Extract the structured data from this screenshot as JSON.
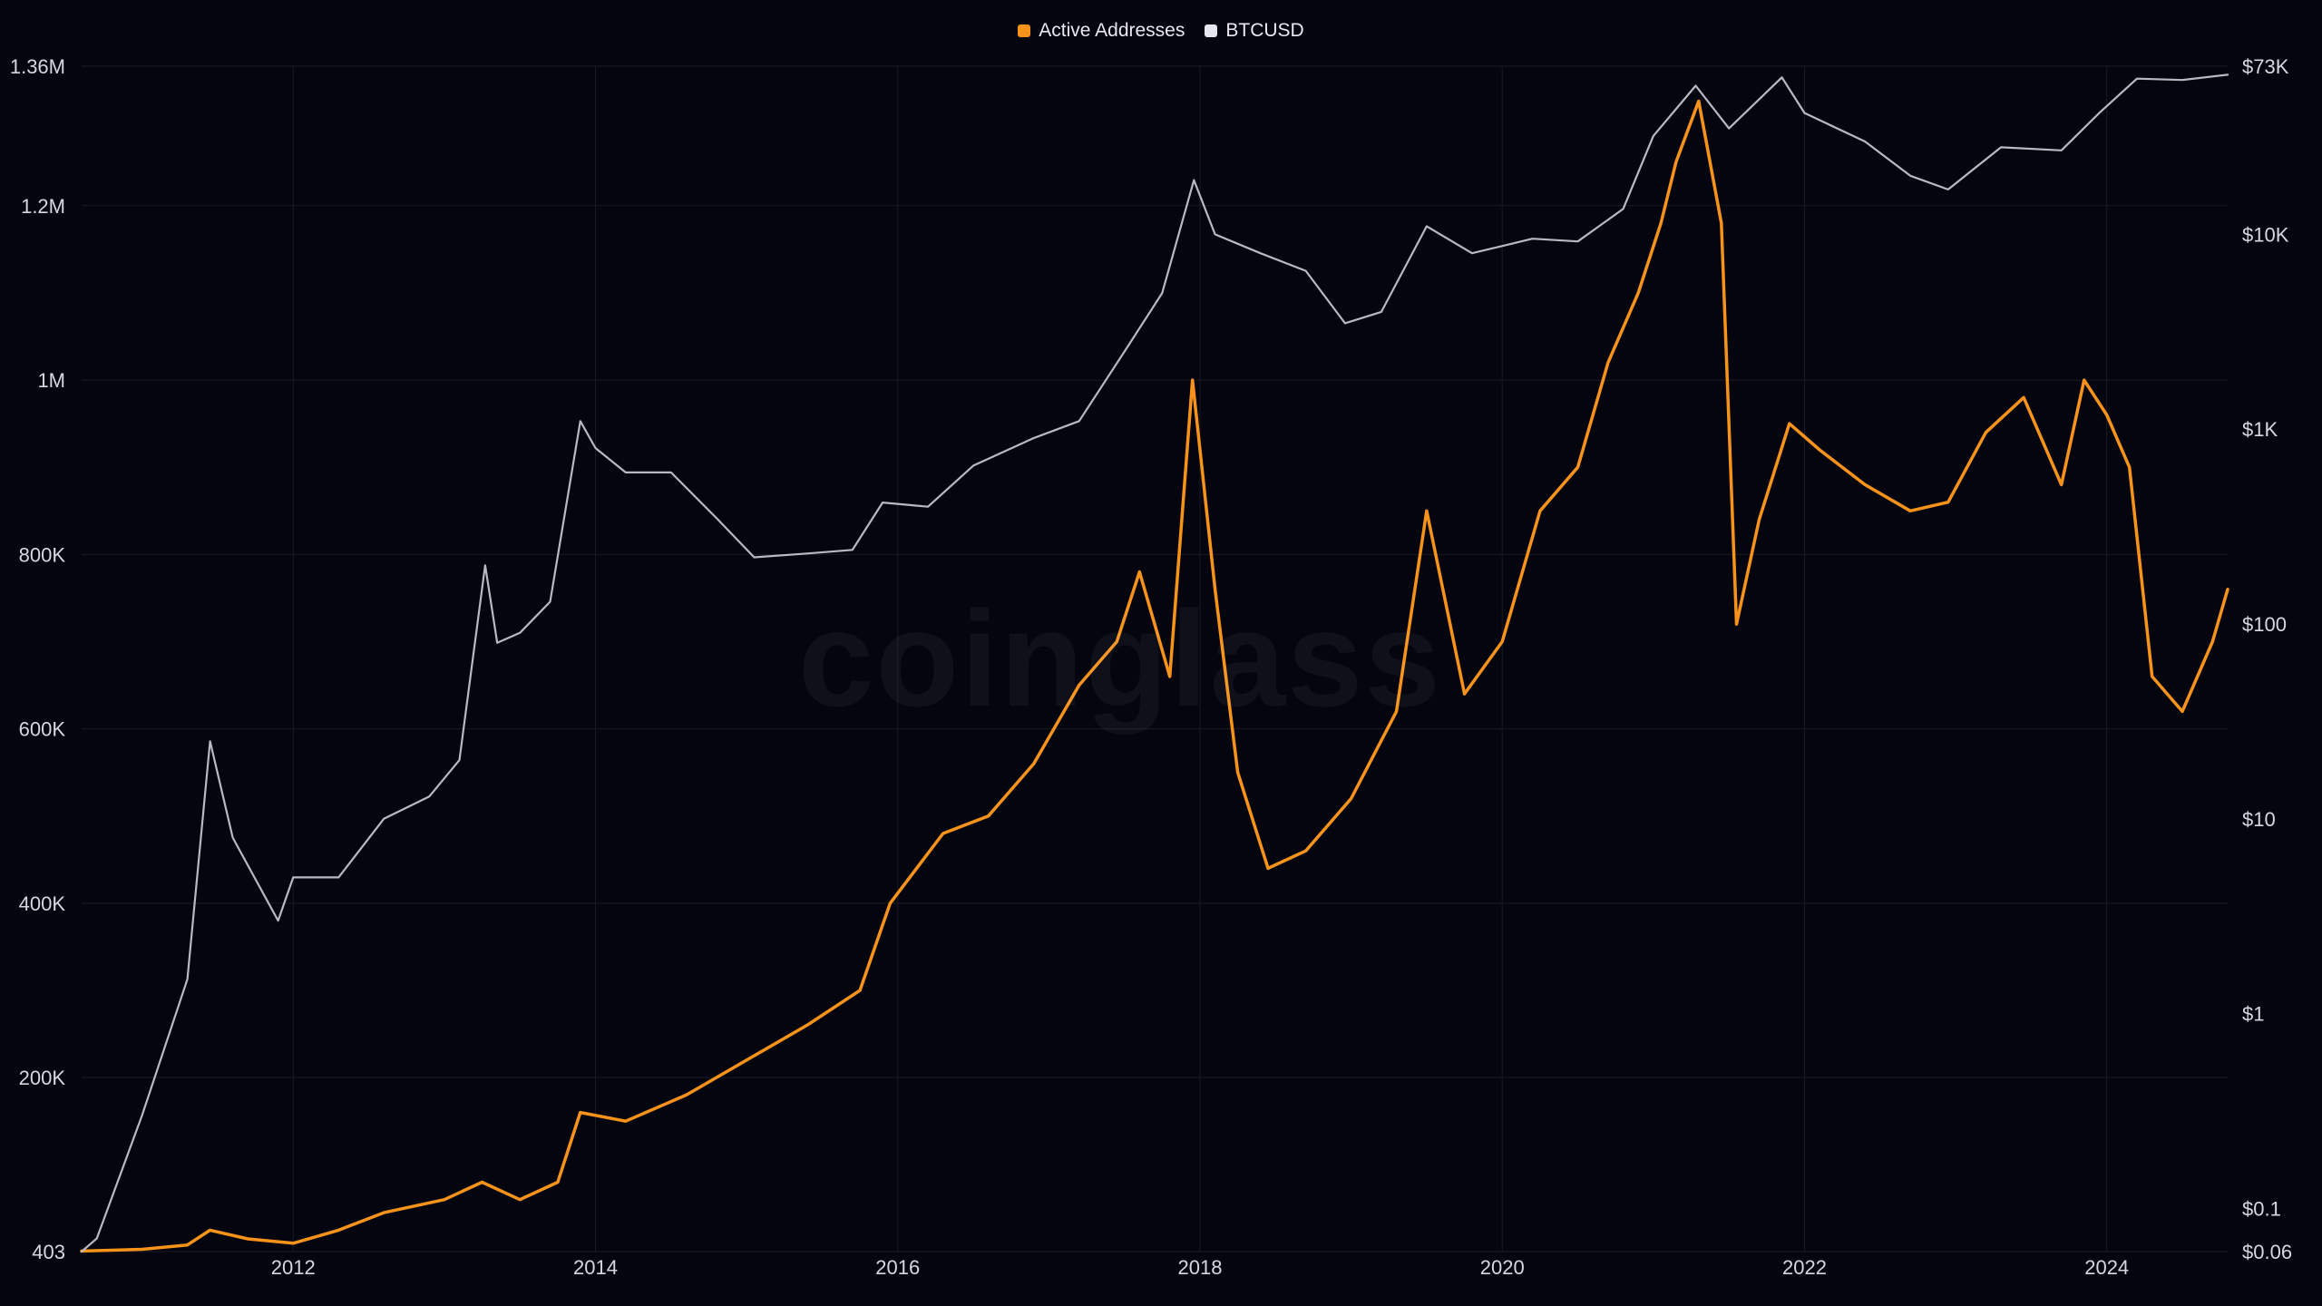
{
  "legend": {
    "items": [
      {
        "label": "Active Addresses",
        "color": "#f7931a"
      },
      {
        "label": "BTCUSD",
        "color": "#e6e6ee"
      }
    ]
  },
  "watermark": "coinglass",
  "colors": {
    "background": "#05050f",
    "grid": "#1a1a26",
    "active_addresses": "#f7931a",
    "btcusd": "#b9b9c4",
    "tick_text": "#d7d7de"
  },
  "chart_data": {
    "type": "line",
    "title": "",
    "grid": true,
    "legend_position": "top-center",
    "x_axis": {
      "range": [
        2010.6,
        2024.8
      ],
      "ticks": [
        2012,
        2014,
        2016,
        2018,
        2020,
        2022,
        2024
      ]
    },
    "y_axis_left": {
      "scale": "linear",
      "range": [
        403,
        1360000
      ],
      "ticks": [
        {
          "value": 403,
          "label": "403"
        },
        {
          "value": 200000,
          "label": "200K"
        },
        {
          "value": 400000,
          "label": "400K"
        },
        {
          "value": 600000,
          "label": "600K"
        },
        {
          "value": 800000,
          "label": "800K"
        },
        {
          "value": 1000000,
          "label": "1M"
        },
        {
          "value": 1200000,
          "label": "1.2M"
        },
        {
          "value": 1360000,
          "label": "1.36M"
        }
      ]
    },
    "y_axis_right": {
      "scale": "log",
      "range": [
        0.06,
        73000
      ],
      "ticks": [
        {
          "value": 0.06,
          "label": "$0.06"
        },
        {
          "value": 0.1,
          "label": "$0.1"
        },
        {
          "value": 1,
          "label": "$1"
        },
        {
          "value": 10,
          "label": "$10"
        },
        {
          "value": 100,
          "label": "$100"
        },
        {
          "value": 1000,
          "label": "$1K"
        },
        {
          "value": 10000,
          "label": "$10K"
        },
        {
          "value": 73000,
          "label": "$73K"
        }
      ]
    },
    "series": [
      {
        "name": "Active Addresses",
        "axis": "left",
        "x": [
          2010.6,
          2011.0,
          2011.3,
          2011.45,
          2011.7,
          2012.0,
          2012.3,
          2012.6,
          2013.0,
          2013.25,
          2013.5,
          2013.75,
          2013.9,
          2014.2,
          2014.6,
          2015.0,
          2015.4,
          2015.75,
          2015.95,
          2016.3,
          2016.6,
          2016.9,
          2017.2,
          2017.45,
          2017.6,
          2017.8,
          2017.95,
          2018.1,
          2018.25,
          2018.45,
          2018.7,
          2019.0,
          2019.3,
          2019.5,
          2019.75,
          2020.0,
          2020.25,
          2020.5,
          2020.7,
          2020.9,
          2021.05,
          2021.15,
          2021.3,
          2021.45,
          2021.55,
          2021.7,
          2021.9,
          2022.1,
          2022.4,
          2022.7,
          2022.95,
          2023.2,
          2023.45,
          2023.7,
          2023.85,
          2024.0,
          2024.15,
          2024.3,
          2024.5,
          2024.7,
          2024.8
        ],
        "values": [
          1000,
          3000,
          8000,
          25000,
          15000,
          10000,
          25000,
          45000,
          60000,
          80000,
          60000,
          80000,
          160000,
          150000,
          180000,
          220000,
          260000,
          300000,
          400000,
          480000,
          500000,
          560000,
          650000,
          700000,
          780000,
          660000,
          1000000,
          760000,
          550000,
          440000,
          460000,
          520000,
          620000,
          850000,
          640000,
          700000,
          850000,
          900000,
          1020000,
          1100000,
          1180000,
          1250000,
          1320000,
          1180000,
          720000,
          840000,
          950000,
          920000,
          880000,
          850000,
          860000,
          940000,
          980000,
          880000,
          1000000,
          960000,
          900000,
          660000,
          620000,
          700000,
          760000
        ]
      },
      {
        "name": "BTCUSD",
        "axis": "right",
        "x": [
          2010.6,
          2010.7,
          2011.0,
          2011.3,
          2011.45,
          2011.6,
          2011.9,
          2012.0,
          2012.3,
          2012.6,
          2012.9,
          2013.1,
          2013.27,
          2013.35,
          2013.5,
          2013.7,
          2013.9,
          2014.0,
          2014.2,
          2014.5,
          2014.8,
          2015.05,
          2015.4,
          2015.7,
          2015.9,
          2016.2,
          2016.5,
          2016.9,
          2017.2,
          2017.5,
          2017.75,
          2017.96,
          2018.1,
          2018.4,
          2018.7,
          2018.96,
          2019.2,
          2019.5,
          2019.8,
          2020.2,
          2020.5,
          2020.8,
          2021.0,
          2021.28,
          2021.5,
          2021.85,
          2022.0,
          2022.4,
          2022.7,
          2022.95,
          2023.3,
          2023.7,
          2023.95,
          2024.2,
          2024.5,
          2024.8
        ],
        "values": [
          0.06,
          0.07,
          0.3,
          1.5,
          25,
          8,
          3,
          5,
          5,
          10,
          13,
          20,
          200,
          80,
          90,
          130,
          1100,
          800,
          600,
          600,
          350,
          220,
          230,
          240,
          420,
          400,
          650,
          900,
          1100,
          2500,
          5000,
          19000,
          10000,
          8000,
          6500,
          3500,
          4000,
          11000,
          8000,
          9500,
          9200,
          13500,
          32000,
          58000,
          35000,
          64000,
          42000,
          30000,
          20000,
          17000,
          28000,
          27000,
          42000,
          63000,
          62000,
          66000
        ]
      }
    ]
  }
}
